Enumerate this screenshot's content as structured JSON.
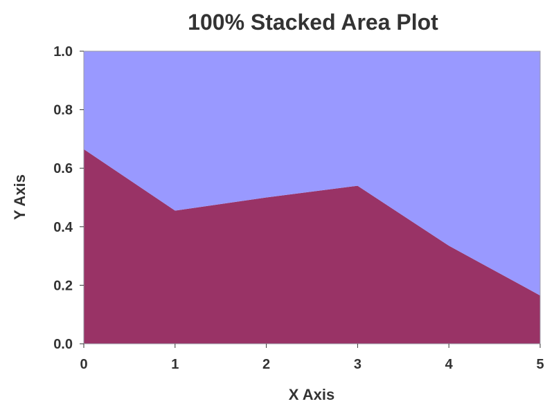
{
  "chart_data": {
    "type": "area",
    "stacking": "percent",
    "title": "100% Stacked Area Plot",
    "xlabel": "X Axis",
    "ylabel": "Y Axis",
    "x": [
      0,
      1,
      2,
      3,
      4,
      5
    ],
    "xlim": [
      0,
      5
    ],
    "ylim": [
      0,
      1
    ],
    "xticks": [
      "0",
      "1",
      "2",
      "3",
      "4",
      "5"
    ],
    "yticks": [
      "0.0",
      "0.2",
      "0.4",
      "0.6",
      "0.8",
      "1.0"
    ],
    "grid": false,
    "legend": "none",
    "series": [
      {
        "values": [
          0.665,
          0.455,
          0.5,
          0.54,
          0.335,
          0.165
        ],
        "color": "#993366"
      },
      {
        "values": [
          0.335,
          0.545,
          0.5,
          0.46,
          0.665,
          0.835
        ],
        "color": "#9999ff"
      }
    ]
  }
}
